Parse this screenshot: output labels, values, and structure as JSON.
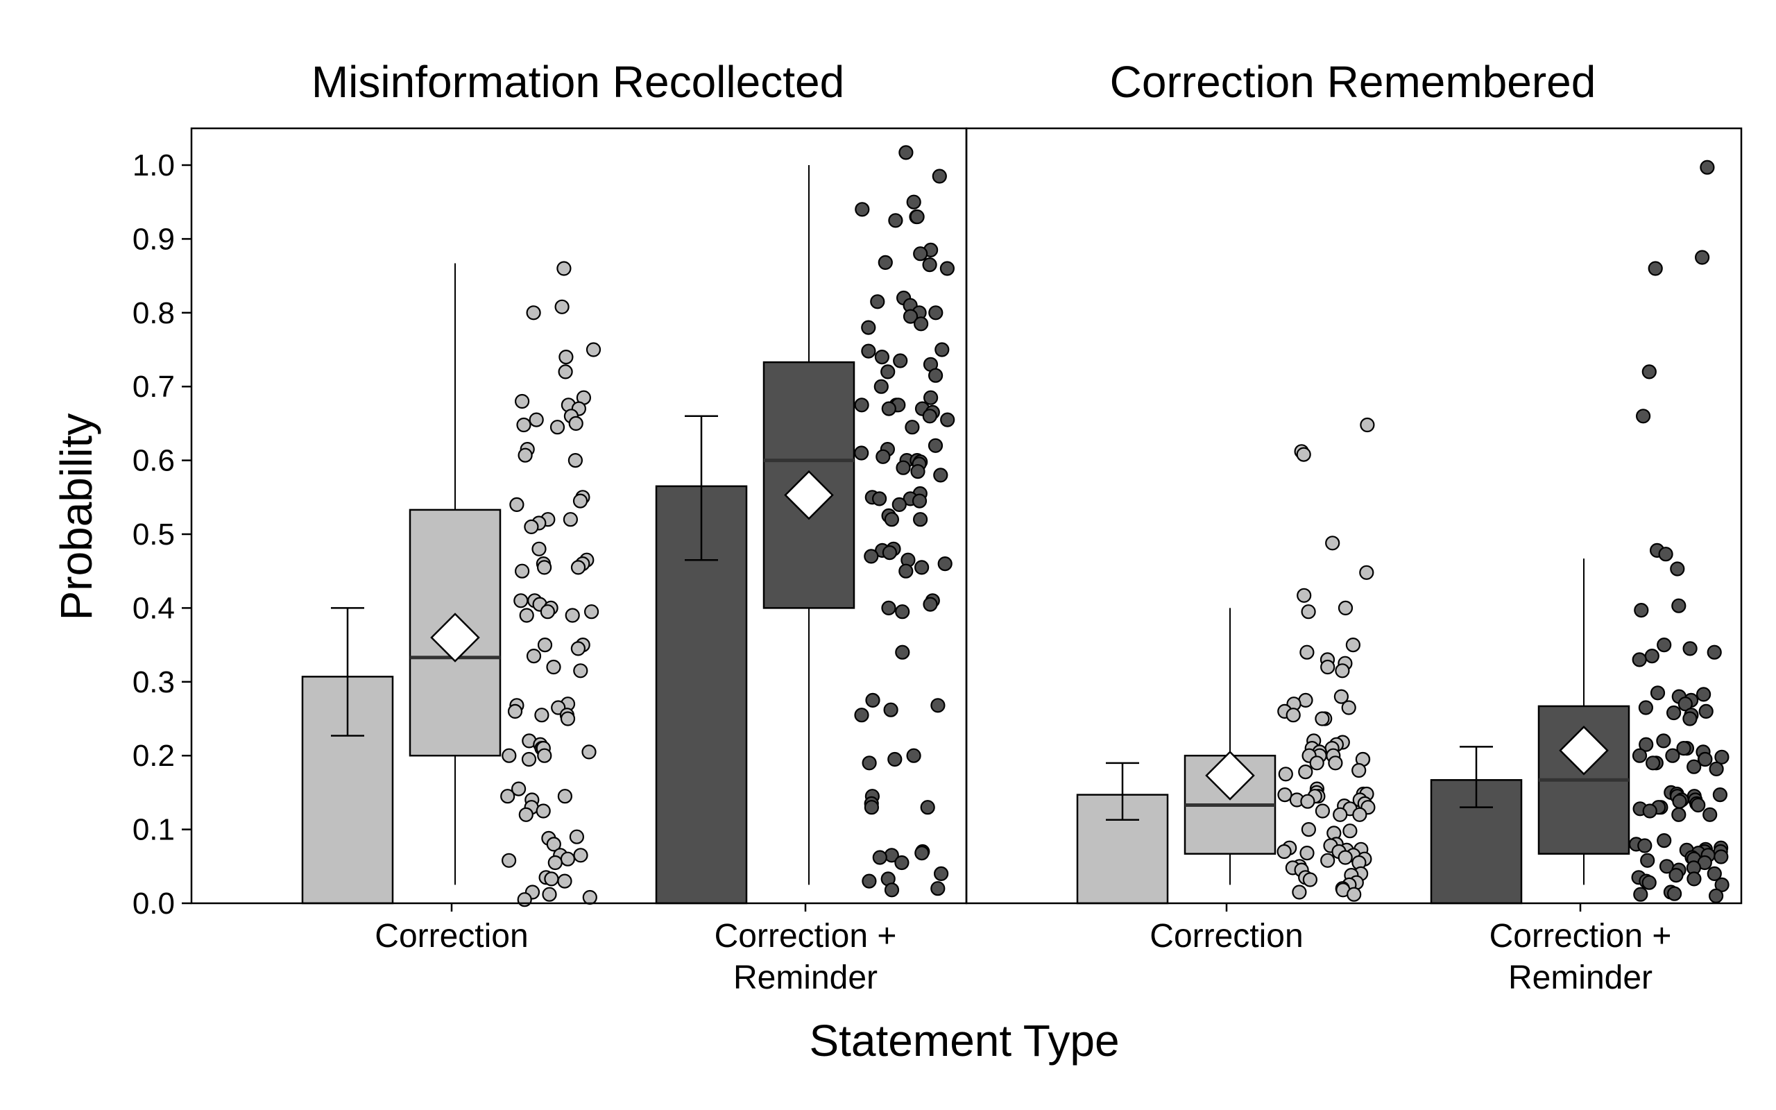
{
  "chart_data": {
    "type": "box",
    "ylabel": "Probability",
    "xlabel": "Statement Type",
    "ylim": [
      0.0,
      1.05
    ],
    "yticks": [
      "0.0",
      "0.1",
      "0.2",
      "0.3",
      "0.4",
      "0.5",
      "0.6",
      "0.7",
      "0.8",
      "0.9",
      "1.0"
    ],
    "grid": false,
    "colors": {
      "correction": "#c0c0c0",
      "reminder": "#505050",
      "median_line": "#333333",
      "mean_marker": "#ffffff"
    },
    "panels": [
      {
        "title": "Misinformation Recollected",
        "groups": [
          {
            "label_lines": [
              "Correction"
            ],
            "fill": "correction",
            "bar": {
              "mean": 0.307,
              "ci_low": 0.227,
              "ci_high": 0.4
            },
            "box": {
              "q1": 0.2,
              "median": 0.333,
              "q3": 0.533,
              "whisker_low": 0.025,
              "whisker_high": 0.867,
              "mean": 0.36
            },
            "points": [
              0.86,
              0.8,
              0.808,
              0.75,
              0.74,
              0.72,
              0.68,
              0.685,
              0.675,
              0.67,
              0.66,
              0.655,
              0.65,
              0.648,
              0.645,
              0.615,
              0.607,
              0.6,
              0.55,
              0.545,
              0.54,
              0.52,
              0.52,
              0.515,
              0.51,
              0.48,
              0.465,
              0.46,
              0.46,
              0.455,
              0.455,
              0.45,
              0.41,
              0.41,
              0.405,
              0.4,
              0.395,
              0.395,
              0.39,
              0.39,
              0.35,
              0.35,
              0.345,
              0.335,
              0.32,
              0.315,
              0.27,
              0.268,
              0.265,
              0.26,
              0.255,
              0.255,
              0.25,
              0.22,
              0.215,
              0.21,
              0.21,
              0.205,
              0.2,
              0.2,
              0.195,
              0.155,
              0.145,
              0.145,
              0.14,
              0.13,
              0.125,
              0.12,
              0.09,
              0.088,
              0.08,
              0.065,
              0.065,
              0.06,
              0.058,
              0.055,
              0.035,
              0.033,
              0.03,
              0.015,
              0.012,
              0.008,
              0.005
            ]
          },
          {
            "label_lines": [
              "Correction +",
              "Reminder"
            ],
            "fill": "reminder",
            "bar": {
              "mean": 0.565,
              "ci_low": 0.465,
              "ci_high": 0.66
            },
            "box": {
              "q1": 0.4,
              "median": 0.6,
              "q3": 0.733,
              "whisker_low": 0.025,
              "whisker_high": 1.0,
              "mean": 0.553
            },
            "points": [
              1.017,
              0.985,
              0.95,
              0.94,
              0.93,
              0.93,
              0.925,
              0.885,
              0.88,
              0.868,
              0.865,
              0.86,
              0.82,
              0.815,
              0.81,
              0.8,
              0.8,
              0.795,
              0.785,
              0.78,
              0.75,
              0.748,
              0.74,
              0.735,
              0.73,
              0.72,
              0.715,
              0.7,
              0.685,
              0.675,
              0.675,
              0.675,
              0.67,
              0.67,
              0.665,
              0.66,
              0.655,
              0.645,
              0.62,
              0.615,
              0.61,
              0.605,
              0.6,
              0.6,
              0.598,
              0.595,
              0.59,
              0.585,
              0.58,
              0.555,
              0.55,
              0.548,
              0.548,
              0.545,
              0.54,
              0.525,
              0.52,
              0.52,
              0.48,
              0.478,
              0.475,
              0.47,
              0.465,
              0.46,
              0.455,
              0.45,
              0.41,
              0.405,
              0.4,
              0.395,
              0.34,
              0.275,
              0.268,
              0.262,
              0.255,
              0.2,
              0.195,
              0.19,
              0.145,
              0.135,
              0.13,
              0.13,
              0.07,
              0.068,
              0.065,
              0.062,
              0.055,
              0.04,
              0.033,
              0.03,
              0.02,
              0.018
            ]
          }
        ]
      },
      {
        "title": "Correction Remembered",
        "groups": [
          {
            "label_lines": [
              "Correction"
            ],
            "fill": "correction",
            "bar": {
              "mean": 0.147,
              "ci_low": 0.113,
              "ci_high": 0.19
            },
            "box": {
              "q1": 0.067,
              "median": 0.133,
              "q3": 0.2,
              "whisker_low": 0.025,
              "whisker_high": 0.4,
              "mean": 0.173
            },
            "points": [
              0.648,
              0.612,
              0.608,
              0.488,
              0.448,
              0.417,
              0.4,
              0.395,
              0.35,
              0.34,
              0.33,
              0.325,
              0.32,
              0.315,
              0.28,
              0.275,
              0.27,
              0.265,
              0.26,
              0.255,
              0.25,
              0.25,
              0.22,
              0.218,
              0.215,
              0.21,
              0.21,
              0.205,
              0.2,
              0.2,
              0.2,
              0.195,
              0.195,
              0.19,
              0.19,
              0.18,
              0.178,
              0.175,
              0.155,
              0.15,
              0.148,
              0.148,
              0.147,
              0.145,
              0.145,
              0.14,
              0.14,
              0.138,
              0.135,
              0.132,
              0.13,
              0.128,
              0.125,
              0.12,
              0.12,
              0.1,
              0.098,
              0.095,
              0.08,
              0.078,
              0.075,
              0.073,
              0.072,
              0.07,
              0.07,
              0.068,
              0.065,
              0.062,
              0.06,
              0.058,
              0.055,
              0.05,
              0.048,
              0.045,
              0.04,
              0.038,
              0.035,
              0.032,
              0.028,
              0.025,
              0.02,
              0.018,
              0.015,
              0.012
            ]
          },
          {
            "label_lines": [
              "Correction +",
              "Reminder"
            ],
            "fill": "reminder",
            "bar": {
              "mean": 0.167,
              "ci_low": 0.13,
              "ci_high": 0.212
            },
            "box": {
              "q1": 0.067,
              "median": 0.167,
              "q3": 0.267,
              "whisker_low": 0.025,
              "whisker_high": 0.467,
              "mean": 0.207
            },
            "points": [
              0.997,
              0.875,
              0.86,
              0.72,
              0.66,
              0.478,
              0.473,
              0.453,
              0.403,
              0.397,
              0.35,
              0.345,
              0.34,
              0.335,
              0.33,
              0.285,
              0.283,
              0.28,
              0.275,
              0.27,
              0.265,
              0.26,
              0.258,
              0.255,
              0.25,
              0.22,
              0.215,
              0.21,
              0.21,
              0.205,
              0.2,
              0.2,
              0.198,
              0.195,
              0.195,
              0.19,
              0.19,
              0.185,
              0.182,
              0.15,
              0.148,
              0.147,
              0.145,
              0.145,
              0.14,
              0.14,
              0.138,
              0.135,
              0.133,
              0.13,
              0.13,
              0.128,
              0.125,
              0.12,
              0.12,
              0.085,
              0.08,
              0.078,
              0.075,
              0.073,
              0.072,
              0.07,
              0.07,
              0.068,
              0.065,
              0.063,
              0.062,
              0.06,
              0.058,
              0.055,
              0.05,
              0.048,
              0.045,
              0.04,
              0.038,
              0.035,
              0.033,
              0.03,
              0.028,
              0.025,
              0.015,
              0.013,
              0.012,
              0.01
            ]
          }
        ]
      }
    ]
  }
}
